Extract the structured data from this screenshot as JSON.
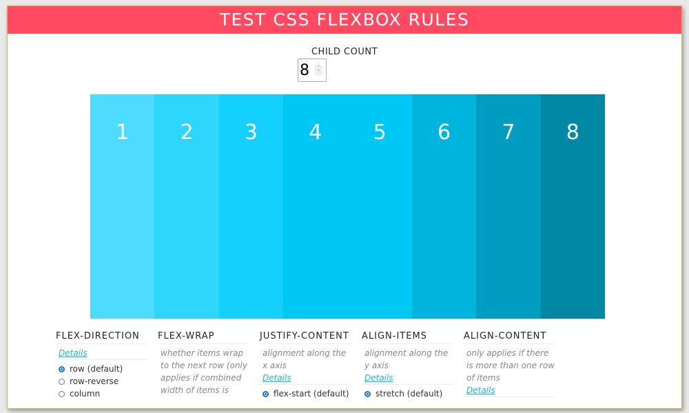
{
  "title": "TEST CSS FLEXBOX RULES",
  "child_count": {
    "label": "CHILD COUNT",
    "value": "8"
  },
  "children": [
    {
      "label": "1",
      "color": "#4ddbff"
    },
    {
      "label": "2",
      "color": "#2ed5fc"
    },
    {
      "label": "3",
      "color": "#14d0ff"
    },
    {
      "label": "4",
      "color": "#00c8f5"
    },
    {
      "label": "5",
      "color": "#00c8f5"
    },
    {
      "label": "6",
      "color": "#00b4de"
    },
    {
      "label": "7",
      "color": "#009dc0"
    },
    {
      "label": "8",
      "color": "#0088a5"
    }
  ],
  "controls": {
    "flex_direction": {
      "title": "FLEX-DIRECTION",
      "details": "Details",
      "options": [
        "row (default)",
        "row-reverse",
        "column"
      ],
      "selected": "row (default)"
    },
    "flex_wrap": {
      "title": "FLEX-WRAP",
      "description": "whether items wrap to the next row (only applies if combined width of items is"
    },
    "justify_content": {
      "title": "JUSTIFY-CONTENT",
      "description": "alignment along the x axis",
      "details": "Details",
      "options": [
        "flex-start (default)"
      ],
      "selected": "flex-start (default)"
    },
    "align_items": {
      "title": "ALIGN-ITEMS",
      "description": "alignment along the y axis",
      "details": "Details",
      "options": [
        "stretch (default)"
      ],
      "selected": "stretch (default)"
    },
    "align_content": {
      "title": "ALIGN-CONTENT",
      "description": "only applies if there is more than one row of items",
      "details": "Details"
    }
  },
  "colors": {
    "header": "#ff4a62",
    "link": "#1ab6dc",
    "radio": "#1a6fe0"
  }
}
